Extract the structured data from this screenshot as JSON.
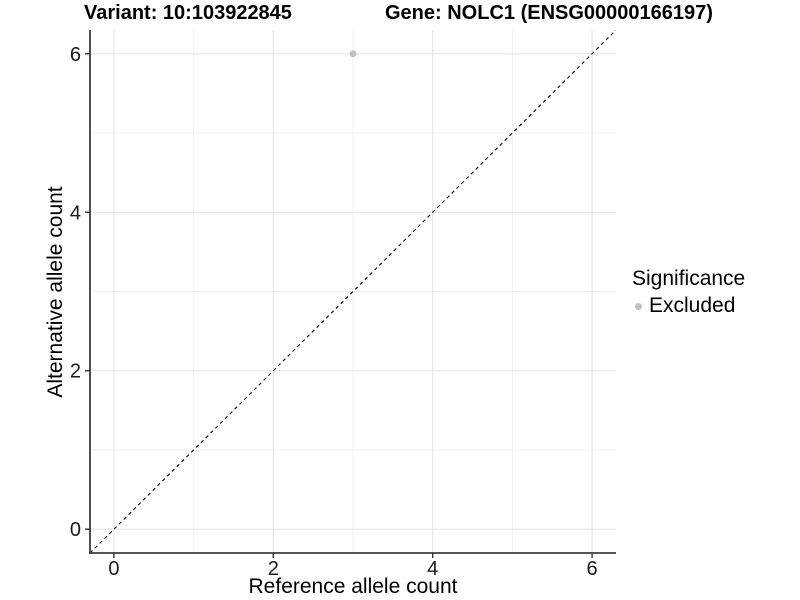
{
  "chart_data": {
    "type": "scatter",
    "title_left": "Variant: 10:103922845",
    "title_right": "Gene: NOLC1 (ENSG00000166197)",
    "xlabel": "Reference allele count",
    "ylabel": "Alternative allele count",
    "xlim": [
      -0.3,
      6.3
    ],
    "ylim": [
      -0.3,
      6.3
    ],
    "x_ticks": [
      0,
      2,
      4,
      6
    ],
    "y_ticks": [
      0,
      2,
      4,
      6
    ],
    "x_minor_ticks": [
      1,
      3,
      5
    ],
    "y_minor_ticks": [
      1,
      3,
      5
    ],
    "grid": "major+minor",
    "reference_line": {
      "slope": 1,
      "intercept": 0,
      "style": "dashed",
      "color": "#000000"
    },
    "series": [
      {
        "name": "Excluded",
        "color": "#c0c0c0",
        "points": [
          {
            "x": 3,
            "y": 6
          }
        ]
      }
    ],
    "legend": {
      "title": "Significance",
      "position": "right",
      "items": [
        {
          "label": "Excluded",
          "color": "#c0c0c0"
        }
      ]
    },
    "style": {
      "background": "#ffffff",
      "grid_major_color": "#e5e5e5",
      "grid_minor_color": "#f1f1f1",
      "axis_line_color": "#3d3d3d",
      "tick_mark_color": "#333333",
      "tick_label_color": "#1a1a1a",
      "text_color": "#000000"
    }
  }
}
